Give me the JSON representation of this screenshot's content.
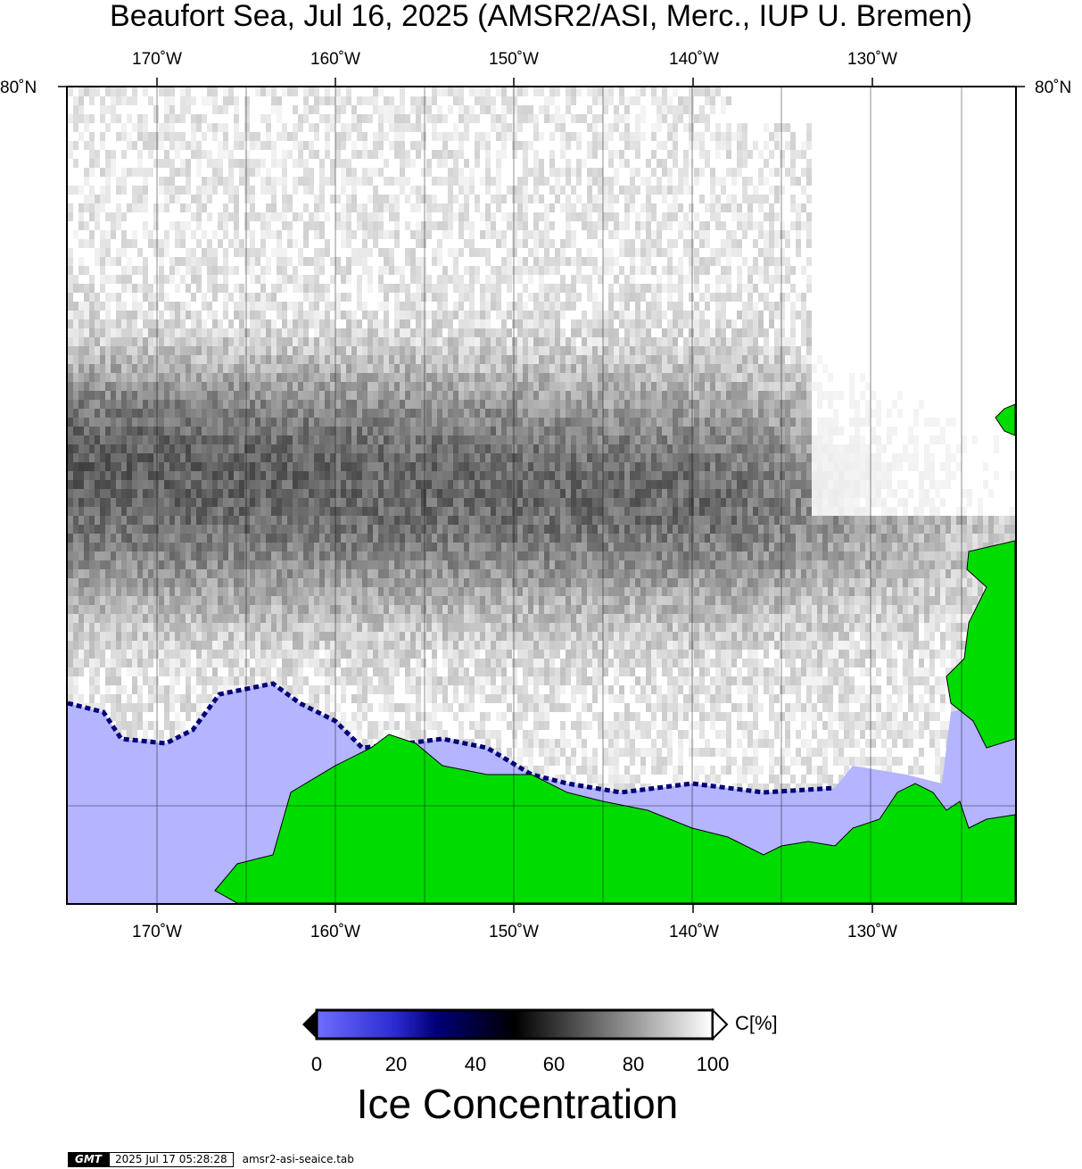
{
  "title": "Beaufort Sea, Jul 16, 2025 (AMSR2/ASI, Merc., IUP U. Bremen)",
  "map": {
    "lon_labels": [
      "170˚W",
      "160˚W",
      "150˚W",
      "140˚W",
      "130˚W"
    ],
    "lat_label": "80˚N",
    "colors": {
      "land": "#00dc00",
      "open_water": "#b4b4ff",
      "ice_full": "#ffffff",
      "ice_mid": "#000000",
      "low_ice": "#000078"
    }
  },
  "colorbar": {
    "ticks": [
      "0",
      "20",
      "40",
      "60",
      "80",
      "100"
    ],
    "unit": "C[%]",
    "title": "Ice Concentration",
    "stops": [
      "#6e6eff",
      "#000078",
      "#000000",
      "#ffffff"
    ]
  },
  "footer": {
    "logo": "GMT",
    "timestamp": "2025 Jul 17 05:28:28",
    "filename": "amsr2-asi-seaice.tab"
  }
}
